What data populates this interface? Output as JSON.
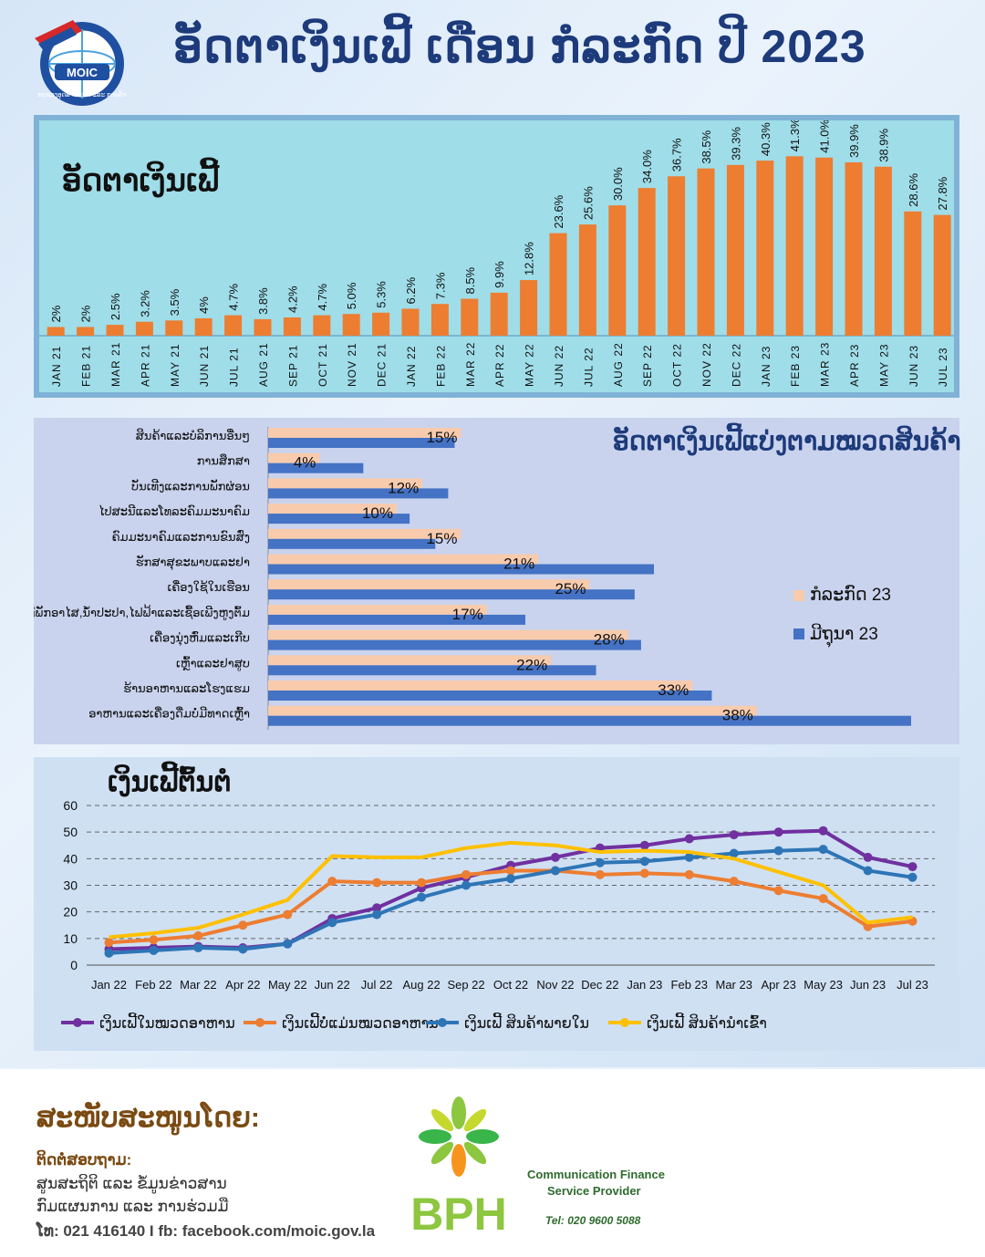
{
  "header": {
    "title": "ອັດຕາເງິນເຟີ້ ເດືອນ ກໍລະກົດ ປີ 2023",
    "logo_text": "MOIC",
    "logo_subtext": "ກະຊວງອຸດສາຫະກຳ ແລະ ການຄ້າ"
  },
  "colors": {
    "orange": "#ed7d31",
    "blue": "#4472c4",
    "peach": "#f8cbad",
    "purple": "#7030a0",
    "lineblue": "#2e75b6",
    "yellow": "#ffc000"
  },
  "chart_data": [
    {
      "type": "bar",
      "title": "ອັດຕາເງິນເຟີ້",
      "categories": [
        "JAN 21",
        "FEB 21",
        "MAR 21",
        "APR 21",
        "MAY 21",
        "JUN 21",
        "JUL 21",
        "AUG 21",
        "SEP 21",
        "OCT 21",
        "NOV 21",
        "DEC 21",
        "JAN 22",
        "FEB 22",
        "MAR 22",
        "APR 22",
        "MAY 22",
        "JUN 22",
        "JUL 22",
        "AUG 22",
        "SEP 22",
        "OCT 22",
        "NOV 22",
        "DEC 22",
        "JAN 23",
        "FEB 23",
        "MAR 23",
        "APR 23",
        "MAY 23",
        "JUN 23",
        "JUL 23"
      ],
      "values": [
        2,
        2,
        2.5,
        3.2,
        3.5,
        4,
        4.7,
        3.8,
        4.2,
        4.7,
        5.0,
        5.3,
        6.2,
        7.3,
        8.5,
        9.9,
        12.8,
        23.6,
        25.6,
        30.0,
        34.0,
        36.7,
        38.5,
        39.3,
        40.3,
        41.3,
        41.0,
        39.9,
        38.9,
        28.6,
        27.8
      ],
      "labels": [
        "2%",
        "2%",
        "2.5%",
        "3.2%",
        "3.5%",
        "4%",
        "4.7%",
        "3.8%",
        "4.2%",
        "4.7%",
        "5.0%",
        "5.3%",
        "6.2%",
        "7.3%",
        "8.5%",
        "9.9%",
        "12.8%",
        "23.6%",
        "25.6%",
        "30.0%",
        "34.0%",
        "36.7%",
        "38.5%",
        "39.3%",
        "40.3%",
        "41.3%",
        "41.0%",
        "39.9%",
        "38.9%",
        "28.6%",
        "27.8%"
      ]
    },
    {
      "type": "bar",
      "orientation": "horizontal",
      "title": "ອັດຕາເງິນເຟີ້ແບ່ງຕາມໝວດສິນຄ້າ",
      "categories": [
        "ສິນຄ້າແລະບໍລິການອື່ນໆ",
        "ການສຶກສາ",
        "ບັນເທີງແລະການພັກຜ່ອນ",
        "ໄປສະນີແລະໂທລະຄົມມະນາຄົມ",
        "ຄົມມະນາຄົມແລະການຂົນສົ່ງ",
        "ຮັກສາສຸຂະພາບແລະຢາ",
        "ເຄື່ອງໃຊ້ໃນເຮືອນ",
        "ທີ່ພັກອາໄສ,ນໍ້າປະປາ,ໄຟຟ້າແລະເຊື້ອເພີງຫູງຕົ້ມ",
        "ເຄື່ອງນຸ່ງຫົ່ມແລະເກີບ",
        "ເຫຼົ້າແລະຢາສູບ",
        "ຮ້ານອາຫານແລະໂຮງແຮມ",
        "ອາຫານແລະເຄື່ອງດື່ມບໍ່ມີທາດເຫຼົ້າ"
      ],
      "series": [
        {
          "name": "ກໍລະກົດ 23",
          "values": [
            15,
            4,
            12,
            10,
            15,
            21,
            25,
            17,
            28,
            22,
            33,
            38
          ]
        },
        {
          "name": "ມີຖຸນາ 23",
          "values": [
            14.5,
            7.4,
            14,
            11,
            13,
            30,
            28.5,
            20,
            29,
            25.5,
            34.5,
            50
          ]
        }
      ],
      "labels": [
        "15%",
        "4%",
        "12%",
        "10%",
        "15%",
        "21%",
        "25%",
        "17%",
        "28%",
        "22%",
        "33%",
        "38%"
      ],
      "legend": "right"
    },
    {
      "type": "line",
      "title": "ເງິນເຟີ້ຕົ້ນຕໍ",
      "x": [
        "Jan 22",
        "Feb 22",
        "Mar 22",
        "Apr 22",
        "May 22",
        "Jun 22",
        "Jul 22",
        "Aug 22",
        "Sep 22",
        "Oct 22",
        "Nov 22",
        "Dec 22",
        "Jan 23",
        "Feb 23",
        "Mar 23",
        "Apr 23",
        "May 23",
        "Jun 23",
        "Jul 23"
      ],
      "series": [
        {
          "name": "ເງິນເຟີ້ໃນໝວດອາຫານ",
          "values": [
            6,
            6.5,
            7,
            6.5,
            8,
            17.5,
            21.5,
            29,
            33,
            37.5,
            40.5,
            44,
            45,
            47.5,
            49,
            50,
            50.5,
            40.5,
            37
          ]
        },
        {
          "name": "ເງິນເຟີ້ບໍ່ແມ່ນໝວດອາຫານ",
          "values": [
            8.5,
            9.5,
            11,
            15,
            19,
            31.5,
            31,
            31,
            34,
            35.5,
            35.5,
            34,
            34.5,
            34,
            31.5,
            28,
            25,
            14.5,
            16.5
          ]
        },
        {
          "name": "ເງິນເຟີ້ ສິນຄ້າພາຍໃນ",
          "values": [
            4.5,
            5.5,
            6.5,
            6,
            8,
            16,
            19,
            25.5,
            30,
            32.5,
            35.5,
            38.5,
            39,
            40.5,
            42,
            43,
            43.5,
            35.5,
            33
          ]
        },
        {
          "name": "ເງິນເຟີ້ ສິນຄ້ານຳເຂົ້າ",
          "values": [
            10.5,
            12,
            14,
            19,
            24.5,
            41,
            40.5,
            40.5,
            44,
            46,
            45,
            42.5,
            43,
            42.5,
            40,
            35,
            30,
            16,
            18
          ]
        }
      ],
      "yticks": [
        "0",
        "10",
        "20",
        "30",
        "40",
        "50",
        "60"
      ],
      "ylim": [
        0,
        60
      ],
      "grid": true,
      "legend": "bottom"
    }
  ],
  "footer": {
    "sponsor": "ສະໜັບສະໜູນໂດຍ:",
    "contact_label": "ຕິດຕໍ່ສອບຖາມ:",
    "line1": "ສູນສະຖິຕິ ແລະ ຂໍ້ມູນຂ່າວສານ",
    "line2": "ກົມແຜນການ ແລະ ການຮ່ວມມື",
    "line3": "ໂທ: 021 416140  I  fb: facebook.com/moic.gov.la",
    "bph": "BPH",
    "bph_line1": "Communication Finance",
    "bph_line2": "Service Provider",
    "bph_tel": "Tel: 020 9600 5088"
  }
}
